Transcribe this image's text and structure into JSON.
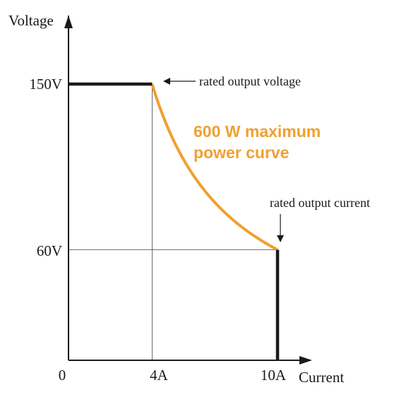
{
  "chart_data": {
    "type": "line",
    "xlabel": "Current",
    "ylabel": "Voltage",
    "xlim": [
      0,
      10.4
    ],
    "ylim": [
      0,
      170
    ],
    "x_ticks": [
      "0",
      "4A",
      "10A"
    ],
    "y_ticks": [
      "150V",
      "60V"
    ],
    "series": [
      {
        "name": "600 W maximum power curve",
        "color": "#f0a030",
        "equation": "V = 600 / I",
        "x": [
          4,
          4.5,
          5,
          5.5,
          6,
          6.5,
          7,
          7.5,
          8,
          8.5,
          9,
          9.5,
          10
        ],
        "y": [
          150,
          133.3,
          120,
          109.1,
          100,
          92.3,
          85.7,
          80,
          75,
          70.6,
          66.7,
          63.2,
          60
        ]
      },
      {
        "name": "",
        "color": "#1a1a1a",
        "x": [
          0,
          4
        ],
        "y": [
          150,
          150
        ]
      },
      {
        "name": "",
        "color": "#1a1a1a",
        "x": [
          10,
          10
        ],
        "y": [
          60,
          0
        ]
      }
    ],
    "reference_lines": [
      {
        "from": [
          4,
          0
        ],
        "to": [
          4,
          150
        ]
      },
      {
        "from": [
          0,
          60
        ],
        "to": [
          10,
          60
        ]
      }
    ],
    "annotations": {
      "rated_voltage": "rated output voltage",
      "rated_current": "rated output current",
      "power_curve_line1": "600 W maximum",
      "power_curve_line2": "power curve"
    }
  }
}
